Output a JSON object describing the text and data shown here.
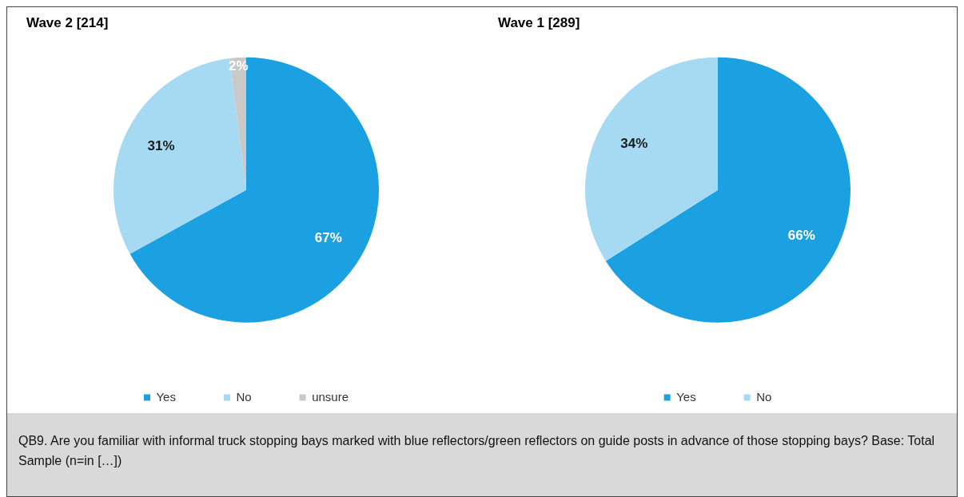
{
  "chart_data": [
    {
      "type": "pie",
      "title": "Wave 2 [214]",
      "categories": [
        "Yes",
        "No",
        "unsure"
      ],
      "values": [
        67,
        31,
        2
      ],
      "colors": [
        "#1ba1e2",
        "#a6d9f2",
        "#c9c9c9"
      ],
      "value_labels": [
        "67%",
        "31%",
        "2%"
      ],
      "legend": "bottom"
    },
    {
      "type": "pie",
      "title": "Wave 1 [289]",
      "categories": [
        "Yes",
        "No"
      ],
      "values": [
        66,
        34
      ],
      "colors": [
        "#1ba1e2",
        "#a6d9f2"
      ],
      "value_labels": [
        "66%",
        "34%"
      ],
      "legend": "bottom"
    },
    {
      "type": "other",
      "annotations": [
        "QB9. Are you familiar with informal truck stopping bays marked with blue reflectors/green reflectors on guide posts in advance of those stopping bays? Base: Total Sample (n=in […])"
      ]
    }
  ]
}
